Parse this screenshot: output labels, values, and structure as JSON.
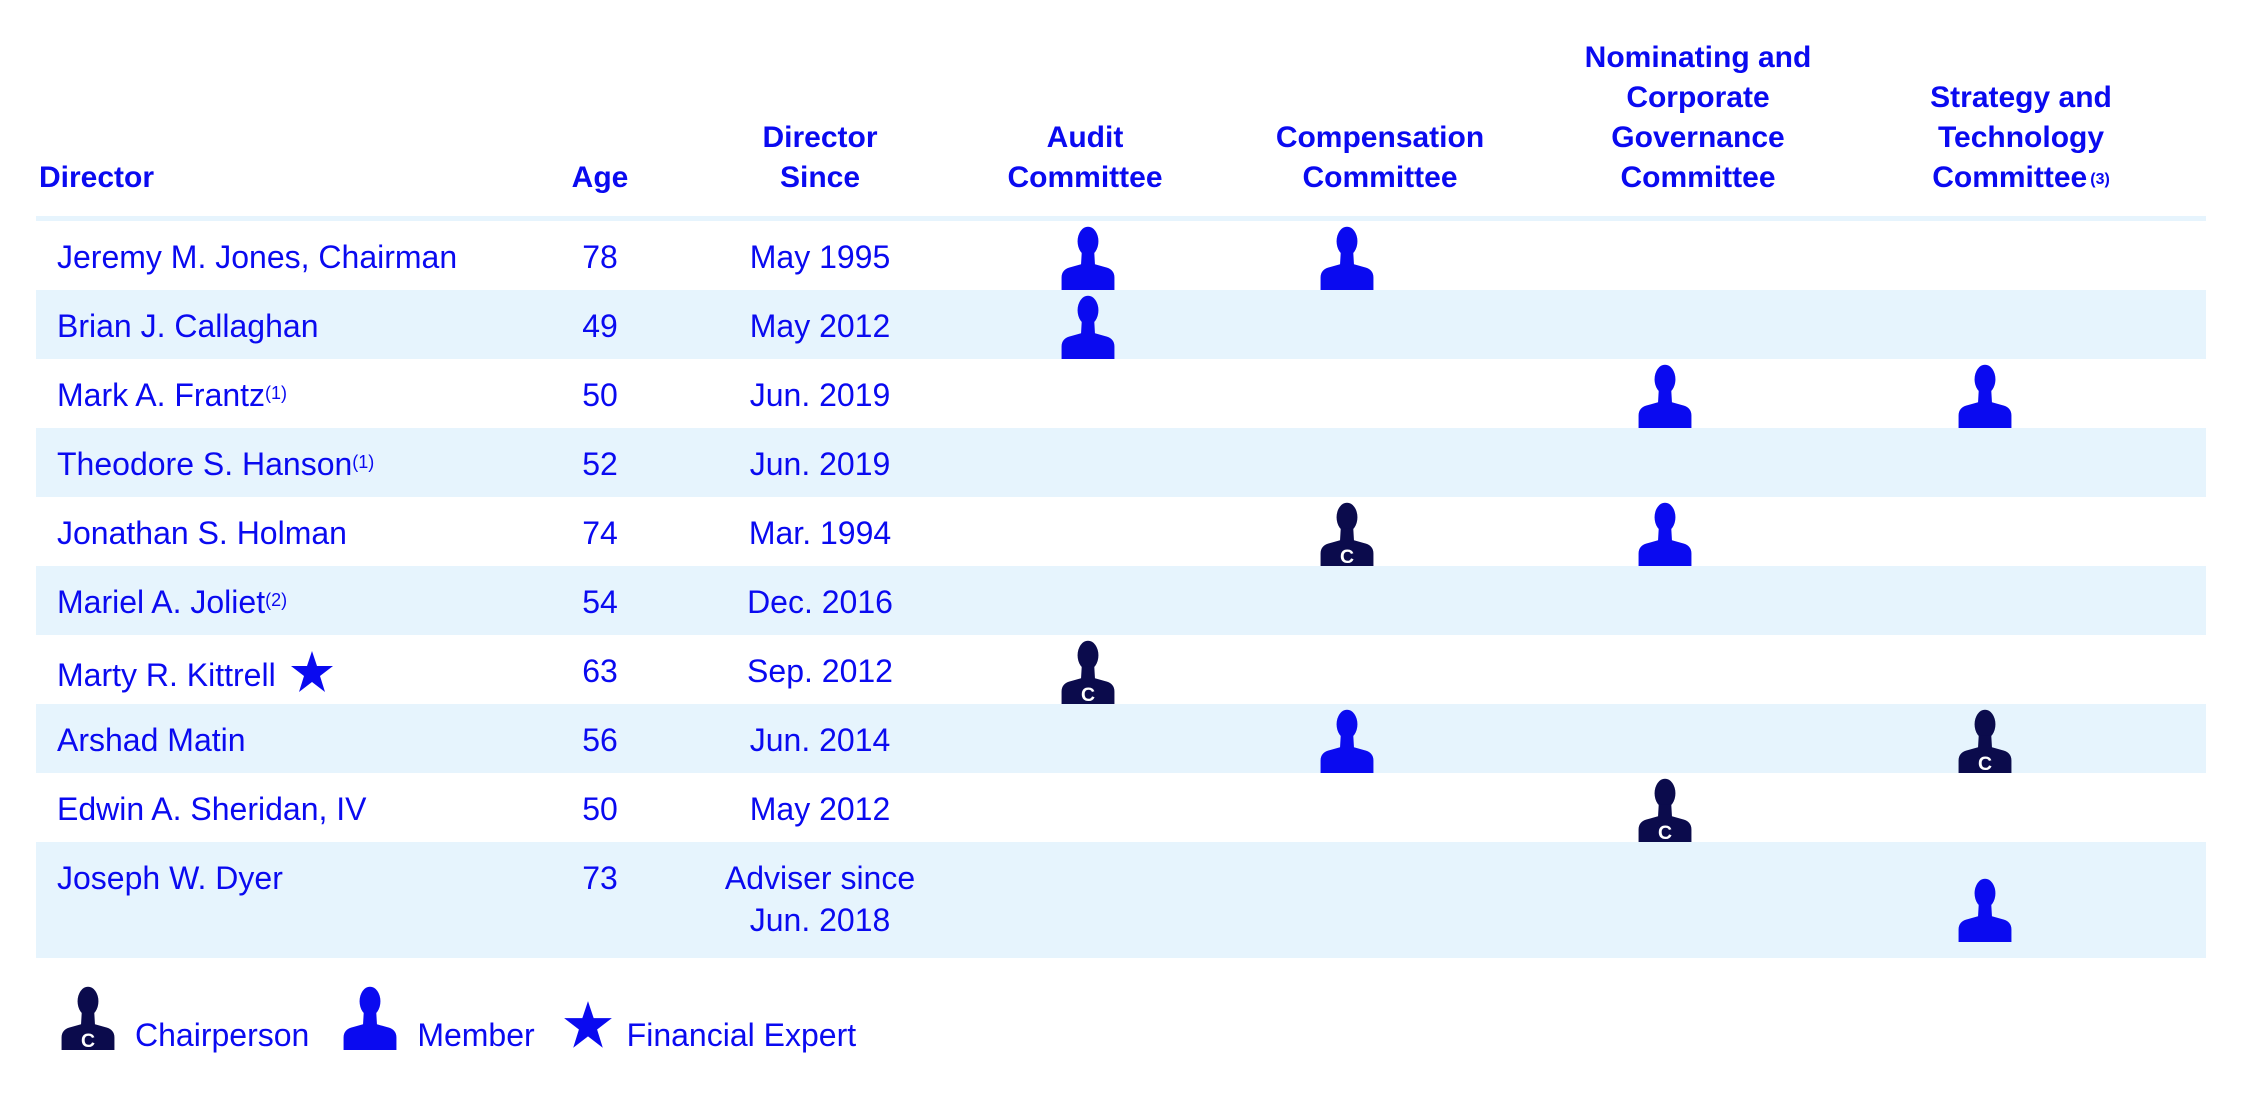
{
  "colors": {
    "text": "#0a0af0",
    "member": "#0a0af0",
    "chair": "#0b0b4c",
    "row_alt": "#e6f4fd"
  },
  "icons": {
    "member": "person-silhouette-icon",
    "chair": "person-silhouette-chair-icon",
    "financial_expert": "star-icon",
    "chair_letter": "C"
  },
  "headers": {
    "director": "Director",
    "age": "Age",
    "since": "Director\nSince",
    "audit": "Audit\nCommittee",
    "compensation": "Compensation\nCommittee",
    "nominating": "Nominating and\nCorporate\nGovernance\nCommittee",
    "strategy": "Strategy and\nTechnology\nCommittee",
    "strategy_note": "(3)"
  },
  "rows": [
    {
      "name": "Jeremy M. Jones, Chairman",
      "note": "",
      "star": false,
      "age": "78",
      "since": "May 1995",
      "audit": "member",
      "compensation": "member",
      "nominating": null,
      "strategy": null
    },
    {
      "name": "Brian J. Callaghan",
      "note": "",
      "star": false,
      "age": "49",
      "since": "May 2012",
      "audit": "member",
      "compensation": null,
      "nominating": null,
      "strategy": null
    },
    {
      "name": "Mark A. Frantz",
      "note": "(1)",
      "star": false,
      "age": "50",
      "since": "Jun. 2019",
      "audit": null,
      "compensation": null,
      "nominating": "member",
      "strategy": "member"
    },
    {
      "name": "Theodore S. Hanson",
      "note": "(1)",
      "star": false,
      "age": "52",
      "since": "Jun. 2019",
      "audit": null,
      "compensation": null,
      "nominating": null,
      "strategy": null
    },
    {
      "name": "Jonathan S. Holman",
      "note": "",
      "star": false,
      "age": "74",
      "since": "Mar. 1994",
      "audit": null,
      "compensation": "chair",
      "nominating": "member",
      "strategy": null
    },
    {
      "name": "Mariel A. Joliet",
      "note": "(2)",
      "star": false,
      "age": "54",
      "since": "Dec. 2016",
      "audit": null,
      "compensation": null,
      "nominating": null,
      "strategy": null
    },
    {
      "name": "Marty R. Kittrell",
      "note": "",
      "star": true,
      "age": "63",
      "since": "Sep. 2012",
      "audit": "chair",
      "compensation": null,
      "nominating": null,
      "strategy": null
    },
    {
      "name": "Arshad Matin",
      "note": "",
      "star": false,
      "age": "56",
      "since": "Jun. 2014",
      "audit": null,
      "compensation": "member",
      "nominating": null,
      "strategy": "chair"
    },
    {
      "name": "Edwin A. Sheridan, IV",
      "note": "",
      "star": false,
      "age": "50",
      "since": "May 2012",
      "audit": null,
      "compensation": null,
      "nominating": "chair",
      "strategy": null
    },
    {
      "name": "Joseph W. Dyer",
      "note": "",
      "star": false,
      "age": "73",
      "since": "Adviser since\nJun. 2018",
      "audit": null,
      "compensation": null,
      "nominating": null,
      "strategy": "member"
    }
  ],
  "legend": {
    "chair": "Chairperson",
    "member": "Member",
    "financial_expert": "Financial Expert"
  }
}
